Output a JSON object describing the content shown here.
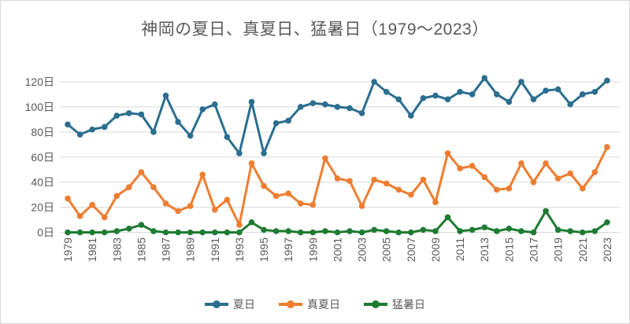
{
  "chart_data": {
    "type": "line",
    "title": "神岡の夏日、真夏日、猛暑日（1979～2023）",
    "xlabel": "",
    "ylabel": "",
    "x_range": [
      1979,
      2023
    ],
    "x_tick_labels": [
      "1979",
      "1981",
      "1983",
      "1985",
      "1987",
      "1989",
      "1991",
      "1993",
      "1995",
      "1997",
      "1999",
      "2001",
      "2003",
      "2005",
      "2007",
      "2009",
      "2011",
      "2013",
      "2015",
      "2017",
      "2019",
      "2021",
      "2023"
    ],
    "y_tick_labels": [
      "0日",
      "20日",
      "40日",
      "60日",
      "80日",
      "100日",
      "120日"
    ],
    "ylim": [
      0,
      130
    ],
    "y_major_unit": 20,
    "grid": "horizontal",
    "legend_position": "bottom",
    "categories": [
      1979,
      1980,
      1981,
      1982,
      1983,
      1984,
      1985,
      1986,
      1987,
      1988,
      1989,
      1990,
      1991,
      1992,
      1993,
      1994,
      1995,
      1996,
      1997,
      1998,
      1999,
      2000,
      2001,
      2002,
      2003,
      2004,
      2005,
      2006,
      2007,
      2008,
      2009,
      2010,
      2011,
      2012,
      2013,
      2014,
      2015,
      2016,
      2017,
      2018,
      2019,
      2020,
      2021,
      2022,
      2023
    ],
    "series": [
      {
        "name": "夏日",
        "color": "#2b6e8f",
        "values": [
          86,
          78,
          82,
          84,
          93,
          95,
          94,
          80,
          109,
          88,
          77,
          98,
          102,
          76,
          63,
          104,
          63,
          87,
          89,
          100,
          103,
          102,
          100,
          99,
          95,
          120,
          112,
          106,
          93,
          107,
          109,
          106,
          112,
          110,
          123,
          110,
          104,
          120,
          106,
          113,
          114,
          102,
          110,
          112,
          121
        ]
      },
      {
        "name": "真夏日",
        "color": "#ed7d31",
        "values": [
          27,
          13,
          22,
          12,
          29,
          36,
          48,
          36,
          23,
          17,
          21,
          46,
          18,
          26,
          6,
          55,
          37,
          29,
          31,
          23,
          22,
          59,
          43,
          41,
          21,
          42,
          39,
          34,
          30,
          42,
          24,
          63,
          51,
          53,
          44,
          34,
          35,
          55,
          40,
          55,
          43,
          47,
          35,
          48,
          68
        ]
      },
      {
        "name": "猛暑日",
        "color": "#1e7b33",
        "values": [
          0,
          0,
          0,
          0,
          1,
          3,
          6,
          1,
          0,
          0,
          0,
          0,
          0,
          0,
          0,
          8,
          2,
          1,
          1,
          0,
          0,
          1,
          0,
          1,
          0,
          2,
          1,
          0,
          0,
          2,
          1,
          12,
          1,
          2,
          4,
          1,
          3,
          1,
          0,
          17,
          2,
          1,
          0,
          1,
          8
        ]
      }
    ],
    "colors": {
      "grid": "#d9d9d9",
      "text": "#595959",
      "background": "#ffffff"
    }
  }
}
